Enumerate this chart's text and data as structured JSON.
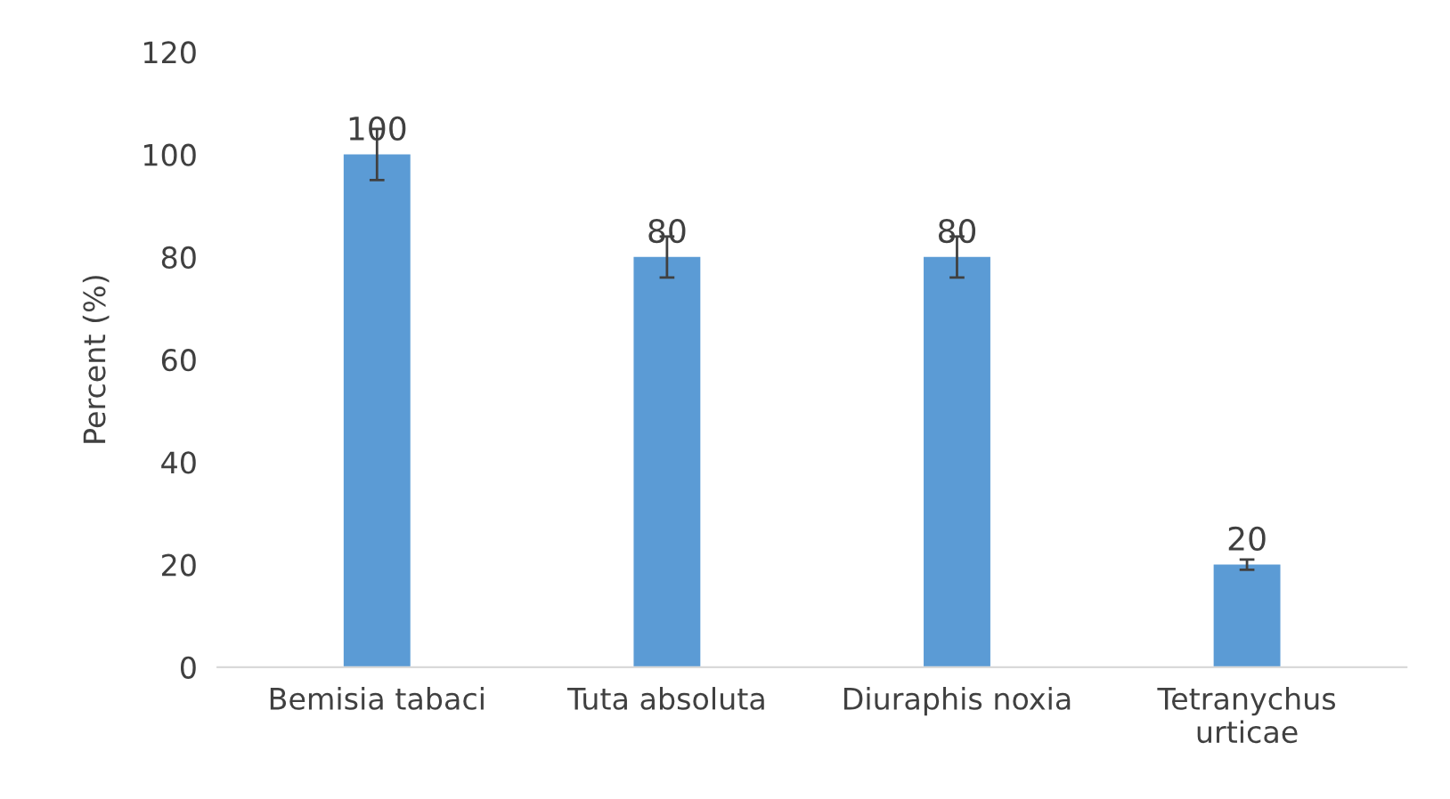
{
  "chart_data": {
    "type": "bar",
    "ylabel": "Percent (%)",
    "categories": [
      "Bemisia tabaci",
      "Tuta absoluta",
      "Diuraphis noxia",
      "Tetranychus urticae"
    ],
    "values": [
      100,
      80,
      80,
      20
    ],
    "errors": [
      5,
      4,
      4,
      1
    ],
    "color": "#5b9bd5",
    "ylim": [
      0,
      120
    ],
    "yticks": [
      0,
      20,
      40,
      60,
      80,
      100,
      120
    ],
    "data_labels": true,
    "grid": false,
    "legend": false
  }
}
